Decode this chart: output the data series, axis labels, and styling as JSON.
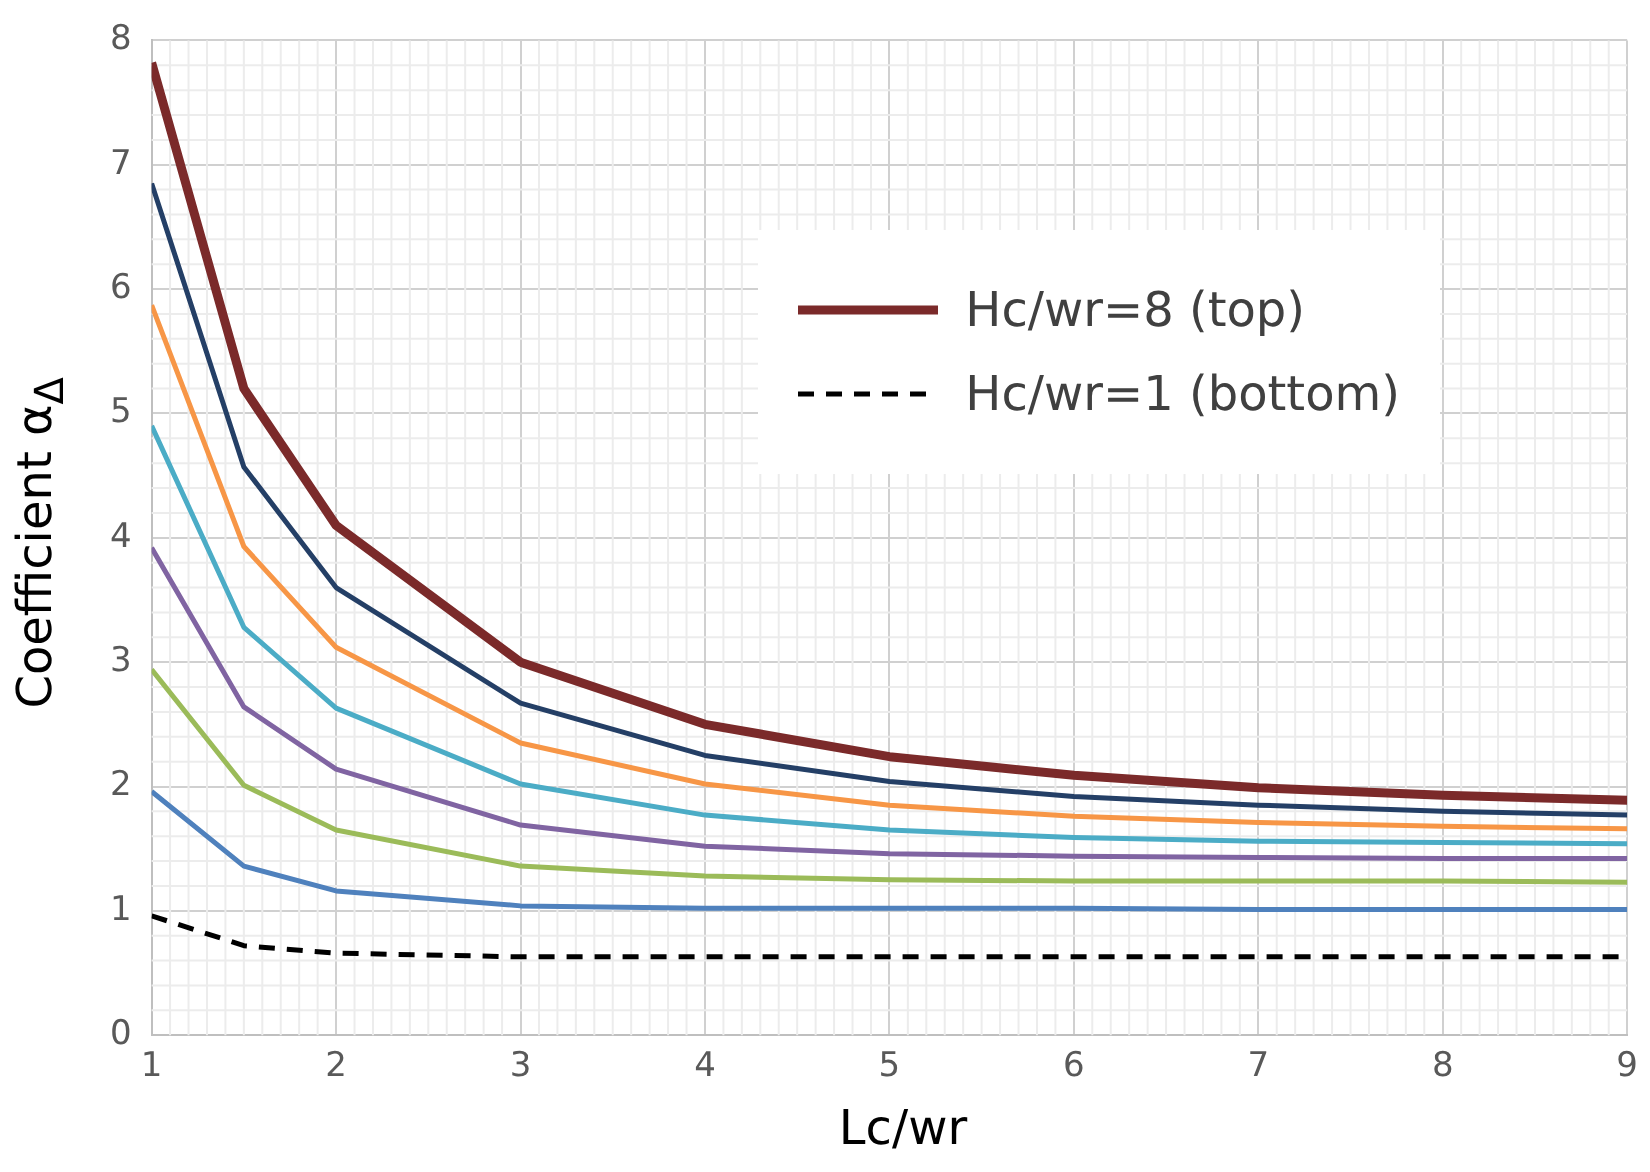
{
  "chart_data": {
    "type": "line",
    "xlabel": "Lc/wr",
    "ylabel": "Coefficient α$_{Δ}$",
    "x": [
      1,
      1.5,
      2,
      3,
      4,
      5,
      6,
      7,
      8,
      9
    ],
    "xlim": [
      1,
      9
    ],
    "xticks": [
      1,
      2,
      3,
      4,
      5,
      6,
      7,
      8,
      9
    ],
    "ylim": [
      0,
      8
    ],
    "yticks": [
      0,
      1,
      2,
      3,
      4,
      5,
      6,
      7,
      8
    ],
    "grid": true,
    "legend": "top right",
    "marker": "none",
    "series": [
      {
        "name": "Hc/wr=8 (top)",
        "color": "#7b2a2a",
        "values": [
          7.82,
          5.2,
          4.1,
          3.0,
          2.5,
          2.24,
          2.09,
          1.99,
          1.93,
          1.89
        ]
      },
      {
        "color": "#243f66",
        "values": [
          6.85,
          4.57,
          3.6,
          2.67,
          2.25,
          2.04,
          1.92,
          1.85,
          1.8,
          1.77
        ]
      },
      {
        "color": "#f79646",
        "values": [
          5.87,
          3.93,
          3.12,
          2.35,
          2.02,
          1.85,
          1.76,
          1.71,
          1.68,
          1.66
        ]
      },
      {
        "color": "#4bacc6",
        "values": [
          4.9,
          3.28,
          2.63,
          2.02,
          1.77,
          1.65,
          1.59,
          1.56,
          1.55,
          1.54
        ]
      },
      {
        "color": "#8064a2",
        "values": [
          3.92,
          2.64,
          2.14,
          1.69,
          1.52,
          1.46,
          1.44,
          1.43,
          1.42,
          1.42
        ]
      },
      {
        "color": "#9bbb59",
        "values": [
          2.94,
          2.01,
          1.65,
          1.36,
          1.28,
          1.25,
          1.24,
          1.24,
          1.24,
          1.23
        ]
      },
      {
        "color": "#4f81bd",
        "values": [
          1.96,
          1.36,
          1.16,
          1.04,
          1.02,
          1.02,
          1.02,
          1.01,
          1.01,
          1.01
        ]
      },
      {
        "name": "Hc/wr=1 (bottom)",
        "color": "#000000",
        "line_style": "dashed",
        "values": [
          0.96,
          0.72,
          0.66,
          0.63,
          0.63,
          0.63,
          0.63,
          0.63,
          0.63,
          0.63
        ]
      }
    ]
  }
}
